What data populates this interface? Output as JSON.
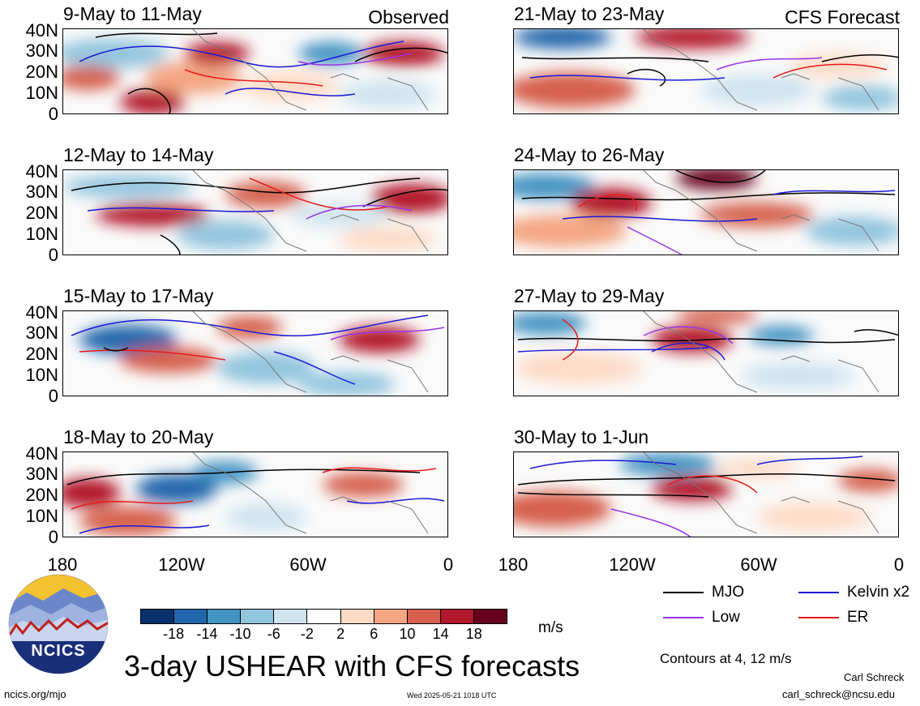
{
  "panels": [
    {
      "title": "9-May to 11-May",
      "tag": "Observed"
    },
    {
      "title": "12-May to 14-May",
      "tag": ""
    },
    {
      "title": "15-May to 17-May",
      "tag": ""
    },
    {
      "title": "18-May to 20-May",
      "tag": ""
    },
    {
      "title": "21-May to 23-May",
      "tag": "CFS Forecast"
    },
    {
      "title": "24-May to 26-May",
      "tag": ""
    },
    {
      "title": "27-May to 29-May",
      "tag": ""
    },
    {
      "title": "30-May to 1-Jun",
      "tag": ""
    }
  ],
  "lat_labels": [
    "40N",
    "30N",
    "20N",
    "10N",
    "0"
  ],
  "lon_labels": [
    "180",
    "120W",
    "60W",
    "0"
  ],
  "legend": {
    "mjo": {
      "label": "MJO",
      "color": "#000000"
    },
    "kelvin": {
      "label": "Kelvin x2",
      "color": "#1a1ad6"
    },
    "low": {
      "label": "Low",
      "color": "#9933e6"
    },
    "er": {
      "label": "ER",
      "color": "#e61a1a"
    }
  },
  "colorbar": {
    "labels": [
      "-18",
      "-14",
      "-10",
      "-6",
      "-2",
      "2",
      "6",
      "10",
      "14",
      "18"
    ],
    "colors": [
      "#08306b",
      "#2166ac",
      "#4393c3",
      "#92c5de",
      "#d1e5f0",
      "#ffffff",
      "#fddbc7",
      "#f4a582",
      "#d6604d",
      "#b2182b",
      "#67001f"
    ],
    "unit": "m/s"
  },
  "main_title": "3-day USHEAR with CFS forecasts",
  "contours_note": "Contours at 4, 12 m/s",
  "author": "Carl Schreck",
  "email": "carl_schreck@ncsu.edu",
  "website": "ncics.org/mjo",
  "timestamp": "Wed 2025-05-21 1018 UTC",
  "logo_text": "NCICS"
}
